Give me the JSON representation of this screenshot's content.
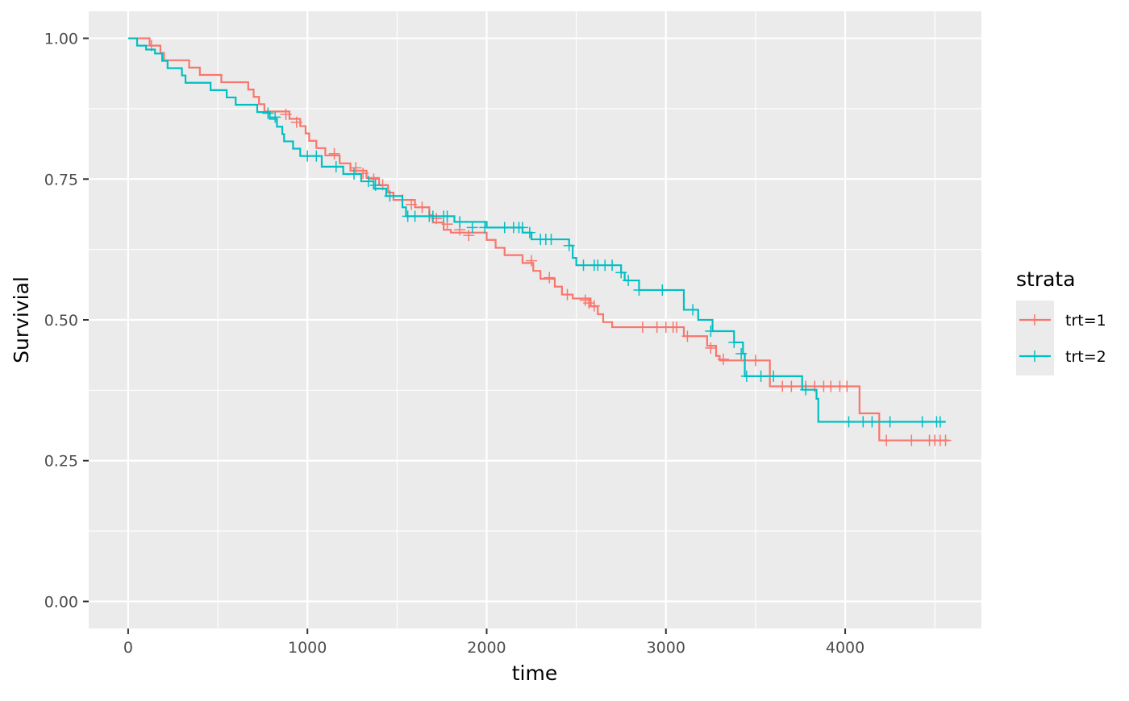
{
  "chart_data": {
    "type": "line",
    "subtype": "kaplan-meier-step",
    "title": "",
    "xlabel": "time",
    "ylabel": "Survivial",
    "xlim": [
      -220,
      4760
    ],
    "ylim": [
      -0.048,
      1.048
    ],
    "x_ticks": [
      0,
      1000,
      2000,
      3000,
      4000
    ],
    "x_tick_labels": [
      "0",
      "1000",
      "2000",
      "3000",
      "4000"
    ],
    "y_ticks": [
      0,
      0.25,
      0.5,
      0.75,
      1.0
    ],
    "y_tick_labels": [
      "0.00",
      "0.25",
      "0.50",
      "0.75",
      "1.00"
    ],
    "grid": true,
    "legend": {
      "title": "strata",
      "position": "right"
    },
    "series": [
      {
        "name": "trt=1",
        "color": "#F8766D",
        "steps": [
          [
            0,
            1.0
          ],
          [
            120,
            0.987
          ],
          [
            180,
            0.974
          ],
          [
            200,
            0.961
          ],
          [
            340,
            0.948
          ],
          [
            400,
            0.935
          ],
          [
            520,
            0.922
          ],
          [
            670,
            0.909
          ],
          [
            700,
            0.896
          ],
          [
            730,
            0.883
          ],
          [
            760,
            0.87
          ],
          [
            900,
            0.857
          ],
          [
            960,
            0.844
          ],
          [
            990,
            0.831
          ],
          [
            1010,
            0.818
          ],
          [
            1050,
            0.805
          ],
          [
            1100,
            0.792
          ],
          [
            1180,
            0.778
          ],
          [
            1240,
            0.765
          ],
          [
            1330,
            0.752
          ],
          [
            1400,
            0.739
          ],
          [
            1450,
            0.726
          ],
          [
            1480,
            0.713
          ],
          [
            1600,
            0.7
          ],
          [
            1680,
            0.686
          ],
          [
            1700,
            0.673
          ],
          [
            1760,
            0.66
          ],
          [
            1800,
            0.655
          ],
          [
            2000,
            0.642
          ],
          [
            2050,
            0.628
          ],
          [
            2100,
            0.615
          ],
          [
            2200,
            0.601
          ],
          [
            2260,
            0.587
          ],
          [
            2300,
            0.573
          ],
          [
            2380,
            0.559
          ],
          [
            2420,
            0.545
          ],
          [
            2480,
            0.538
          ],
          [
            2580,
            0.524
          ],
          [
            2620,
            0.51
          ],
          [
            2650,
            0.496
          ],
          [
            2700,
            0.487
          ],
          [
            3100,
            0.471
          ],
          [
            3230,
            0.454
          ],
          [
            3280,
            0.436
          ],
          [
            3300,
            0.428
          ],
          [
            3580,
            0.382
          ],
          [
            4080,
            0.334
          ],
          [
            4190,
            0.286
          ],
          [
            4580,
            0.286
          ]
        ],
        "censored": [
          [
            130,
            0.987
          ],
          [
            880,
            0.865
          ],
          [
            940,
            0.851
          ],
          [
            1150,
            0.795
          ],
          [
            1270,
            0.77
          ],
          [
            1310,
            0.76
          ],
          [
            1370,
            0.75
          ],
          [
            1420,
            0.74
          ],
          [
            1530,
            0.713
          ],
          [
            1580,
            0.705
          ],
          [
            1640,
            0.7
          ],
          [
            1720,
            0.68
          ],
          [
            1780,
            0.67
          ],
          [
            1850,
            0.66
          ],
          [
            1900,
            0.65
          ],
          [
            2250,
            0.605
          ],
          [
            2350,
            0.575
          ],
          [
            2450,
            0.545
          ],
          [
            2550,
            0.535
          ],
          [
            2570,
            0.53
          ],
          [
            2600,
            0.525
          ],
          [
            2870,
            0.487
          ],
          [
            2950,
            0.487
          ],
          [
            3000,
            0.487
          ],
          [
            3040,
            0.487
          ],
          [
            3060,
            0.487
          ],
          [
            3120,
            0.471
          ],
          [
            3250,
            0.45
          ],
          [
            3320,
            0.43
          ],
          [
            3500,
            0.428
          ],
          [
            3650,
            0.382
          ],
          [
            3700,
            0.382
          ],
          [
            3780,
            0.382
          ],
          [
            3830,
            0.382
          ],
          [
            3880,
            0.382
          ],
          [
            3920,
            0.382
          ],
          [
            3970,
            0.382
          ],
          [
            4010,
            0.382
          ],
          [
            4230,
            0.286
          ],
          [
            4370,
            0.286
          ],
          [
            4470,
            0.286
          ],
          [
            4500,
            0.286
          ],
          [
            4530,
            0.286
          ],
          [
            4560,
            0.286
          ]
        ]
      },
      {
        "name": "trt=2",
        "color": "#00BFC4",
        "steps": [
          [
            0,
            1.0
          ],
          [
            50,
            0.987
          ],
          [
            80,
            0.987
          ],
          [
            100,
            0.98
          ],
          [
            150,
            0.973
          ],
          [
            190,
            0.96
          ],
          [
            220,
            0.947
          ],
          [
            300,
            0.934
          ],
          [
            320,
            0.921
          ],
          [
            460,
            0.908
          ],
          [
            550,
            0.895
          ],
          [
            600,
            0.882
          ],
          [
            720,
            0.869
          ],
          [
            790,
            0.857
          ],
          [
            830,
            0.843
          ],
          [
            860,
            0.83
          ],
          [
            870,
            0.817
          ],
          [
            920,
            0.804
          ],
          [
            960,
            0.791
          ],
          [
            1080,
            0.772
          ],
          [
            1200,
            0.759
          ],
          [
            1300,
            0.746
          ],
          [
            1370,
            0.733
          ],
          [
            1440,
            0.72
          ],
          [
            1530,
            0.7
          ],
          [
            1550,
            0.684
          ],
          [
            1820,
            0.674
          ],
          [
            2000,
            0.664
          ],
          [
            2200,
            0.655
          ],
          [
            2250,
            0.643
          ],
          [
            2460,
            0.632
          ],
          [
            2480,
            0.61
          ],
          [
            2500,
            0.597
          ],
          [
            2750,
            0.584
          ],
          [
            2770,
            0.57
          ],
          [
            2850,
            0.553
          ],
          [
            3100,
            0.518
          ],
          [
            3180,
            0.5
          ],
          [
            3260,
            0.48
          ],
          [
            3380,
            0.46
          ],
          [
            3430,
            0.44
          ],
          [
            3440,
            0.4
          ],
          [
            3760,
            0.376
          ],
          [
            3840,
            0.36
          ],
          [
            3850,
            0.319
          ],
          [
            4560,
            0.319
          ]
        ],
        "censored": [
          [
            780,
            0.867
          ],
          [
            820,
            0.86
          ],
          [
            1000,
            0.791
          ],
          [
            1050,
            0.791
          ],
          [
            1160,
            0.772
          ],
          [
            1260,
            0.759
          ],
          [
            1340,
            0.746
          ],
          [
            1380,
            0.739
          ],
          [
            1460,
            0.72
          ],
          [
            1560,
            0.684
          ],
          [
            1600,
            0.684
          ],
          [
            1680,
            0.684
          ],
          [
            1700,
            0.684
          ],
          [
            1760,
            0.684
          ],
          [
            1780,
            0.684
          ],
          [
            1850,
            0.674
          ],
          [
            1920,
            0.664
          ],
          [
            1990,
            0.664
          ],
          [
            2100,
            0.664
          ],
          [
            2150,
            0.664
          ],
          [
            2180,
            0.664
          ],
          [
            2200,
            0.664
          ],
          [
            2240,
            0.655
          ],
          [
            2300,
            0.643
          ],
          [
            2330,
            0.643
          ],
          [
            2360,
            0.643
          ],
          [
            2460,
            0.632
          ],
          [
            2540,
            0.597
          ],
          [
            2600,
            0.597
          ],
          [
            2620,
            0.597
          ],
          [
            2660,
            0.597
          ],
          [
            2700,
            0.597
          ],
          [
            2750,
            0.584
          ],
          [
            2790,
            0.57
          ],
          [
            2850,
            0.553
          ],
          [
            2980,
            0.553
          ],
          [
            3150,
            0.518
          ],
          [
            3250,
            0.48
          ],
          [
            3380,
            0.46
          ],
          [
            3420,
            0.44
          ],
          [
            3450,
            0.4
          ],
          [
            3530,
            0.4
          ],
          [
            3600,
            0.4
          ],
          [
            3780,
            0.376
          ],
          [
            4020,
            0.319
          ],
          [
            4100,
            0.319
          ],
          [
            4150,
            0.319
          ],
          [
            4250,
            0.319
          ],
          [
            4430,
            0.319
          ],
          [
            4510,
            0.319
          ],
          [
            4530,
            0.319
          ]
        ]
      }
    ]
  }
}
